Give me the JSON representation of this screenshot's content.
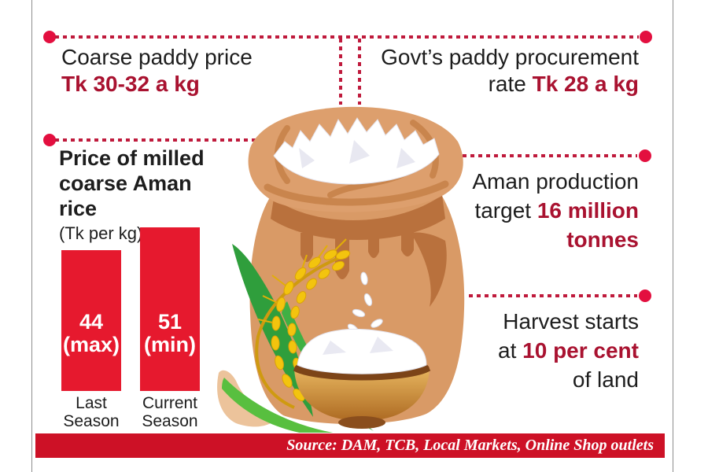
{
  "colors": {
    "bar_red": "#e6192e",
    "value_red": "#a91230",
    "dash_red": "#bf1a3c",
    "dot_red": "#e30f3f",
    "source_bar_red": "#cd1126",
    "text_black": "#1d1d1d"
  },
  "callouts": {
    "coarse_paddy": {
      "text": "Coarse paddy price",
      "value": "Tk 30-32 a kg"
    },
    "procurement": {
      "text": "Govt’s paddy procurement",
      "prefix": "rate ",
      "value": "Tk 28 a kg"
    },
    "production": {
      "text": "Aman production",
      "prefix": "target ",
      "value": "16 million",
      "value_line2": "tonnes"
    },
    "harvest": {
      "text": "Harvest starts",
      "prefix": "at ",
      "value": "10 per cent",
      "suffix": "of land"
    }
  },
  "chart_data": {
    "type": "bar",
    "title": "Price of milled coarse Aman rice",
    "unit_label": "(Tk per kg)",
    "categories": [
      "Last Season",
      "Current Season"
    ],
    "values": [
      44,
      51
    ],
    "bar_annotations": [
      "(max)",
      "(min)"
    ],
    "ylabel": "Tk per kg",
    "bar_color": "#e6192e",
    "legend": "none",
    "grid": "off"
  },
  "source": {
    "label": "Source: DAM, TCB, Local Markets, Online Shop outlets"
  },
  "illustration": {
    "name": "rice-sack-with-paddy-ear-and-bowl"
  }
}
